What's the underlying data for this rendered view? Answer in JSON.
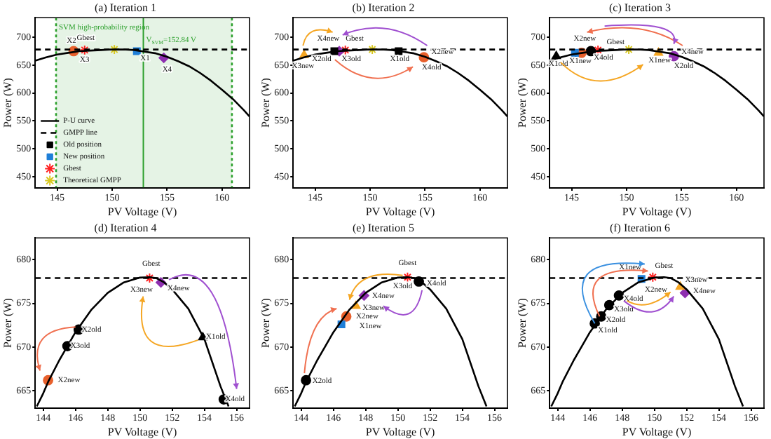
{
  "chart_data": [
    {
      "type": "line",
      "title": "(a) Iteration 1",
      "xlabel": "PV Voltage (V)",
      "ylabel": "Power (W)",
      "xlim": [
        143,
        162.5
      ],
      "xticks": [
        145,
        150,
        155,
        160
      ],
      "ylim": [
        430,
        735
      ],
      "yticks": [
        450,
        500,
        550,
        600,
        650,
        700
      ],
      "legend": "bottom left",
      "bands": [
        {
          "axis": "x",
          "from": 144.9,
          "to": 160.9,
          "label": "SVM high-probability region",
          "color": "#2ca02c"
        }
      ],
      "ref_lines": [
        {
          "axis": "x",
          "value": 152.84,
          "label": "V$_{SVM}$=152.84 V",
          "color": "#2ca02c"
        },
        {
          "axis": "x",
          "value": 144.9,
          "color": "#2ca02c",
          "line_style": "dotted"
        },
        {
          "axis": "x",
          "value": 160.9,
          "color": "#2ca02c",
          "line_style": "dotted"
        }
      ],
      "series": [
        {
          "name": "P-U curve",
          "type": "line",
          "color": "#000000",
          "marker": "none",
          "line_style": "solid",
          "x": [
            143,
            144,
            145,
            146,
            147,
            148,
            149,
            150,
            150.6,
            151,
            152,
            153,
            154,
            155,
            156,
            157,
            158,
            159,
            160,
            161,
            162,
            162.5
          ],
          "values": [
            658,
            664,
            669,
            672,
            675,
            676,
            677,
            678,
            678,
            678,
            677,
            674,
            671,
            665,
            657,
            648,
            636,
            622,
            606,
            589,
            569,
            558
          ]
        },
        {
          "name": "GMPP line",
          "type": "line",
          "color": "#000000",
          "marker": "none",
          "line_style": "dashed",
          "x": [
            143,
            162.5
          ],
          "values": [
            678,
            678
          ]
        },
        {
          "name": "Old position",
          "type": "scatter",
          "color": "#000000",
          "marker": "square"
        },
        {
          "name": "New position",
          "type": "scatter",
          "color": "#1f7fd8",
          "marker": "square",
          "x": [
            152.25
          ],
          "values": [
            675
          ]
        },
        {
          "name": "Gbest",
          "type": "scatter",
          "color": "#ff2020",
          "marker": "cross",
          "x": [
            147.5
          ],
          "values": [
            677
          ]
        },
        {
          "name": "Theoretical GMPP",
          "type": "scatter",
          "color": "#d8c820",
          "marker": "cross",
          "x": [
            150.2
          ],
          "values": [
            678
          ]
        },
        {
          "type": "scatter",
          "color": "#e8602c",
          "marker": "circle",
          "x": [
            146.5
          ],
          "values": [
            675
          ]
        },
        {
          "type": "scatter",
          "color": "#8e2fb0",
          "marker": "diamond",
          "x": [
            154.7
          ],
          "values": [
            663
          ]
        }
      ],
      "annotations": [
        "X2",
        "Gbest",
        "X3",
        "X1",
        "X4"
      ]
    },
    {
      "type": "line",
      "title": "(b) Iteration 2",
      "xlabel": "PV Voltage (V)",
      "ylabel": "Power (W)",
      "xlim": [
        143,
        162.5
      ],
      "xticks": [
        145,
        150,
        155,
        160
      ],
      "ylim": [
        430,
        735
      ],
      "yticks": [
        450,
        500,
        550,
        600,
        650,
        700
      ],
      "series": [
        {
          "type": "line",
          "color": "#000000",
          "marker": "none",
          "line_style": "solid",
          "x": [
            143,
            144,
            145,
            146,
            147,
            148,
            149,
            150,
            150.6,
            151,
            152,
            153,
            154,
            155,
            156,
            157,
            158,
            159,
            160,
            161,
            162,
            162.5
          ],
          "values": [
            658,
            664,
            669,
            672,
            675,
            676,
            677,
            678,
            678,
            678,
            677,
            674,
            671,
            665,
            657,
            648,
            636,
            622,
            606,
            589,
            569,
            558
          ]
        },
        {
          "type": "line",
          "color": "#000000",
          "marker": "none",
          "line_style": "dashed",
          "x": [
            143,
            162.5
          ],
          "values": [
            678,
            678
          ]
        },
        {
          "type": "scatter",
          "color": "#000000",
          "marker": "square",
          "x": [
            146.75,
            152.6
          ],
          "values": [
            675,
            675
          ]
        },
        {
          "type": "scatter",
          "color": "#8e2fb0",
          "marker": "diamond",
          "x": [
            147.2
          ],
          "values": [
            675
          ]
        },
        {
          "type": "scatter",
          "color": "#ff2020",
          "marker": "cross",
          "x": [
            147.75
          ],
          "values": [
            677
          ]
        },
        {
          "type": "scatter",
          "color": "#d8c820",
          "marker": "cross",
          "x": [
            150.2
          ],
          "values": [
            678
          ]
        },
        {
          "type": "scatter",
          "color": "#f5a623",
          "marker": "triangle",
          "x": [
            144
          ],
          "values": [
            668
          ]
        },
        {
          "type": "scatter",
          "color": "#e8602c",
          "marker": "circle",
          "x": [
            154.9
          ],
          "values": [
            664
          ]
        }
      ],
      "annotations": [
        "X3new",
        {
          "text": "X4new",
          "x": 147.2,
          "y": 675
        },
        {
          "text": "Gbest",
          "x": 147.75,
          "y": 677
        },
        "X2old",
        "X3old",
        {
          "text": "X1old",
          "x": 152.6,
          "y": 675
        },
        "X2new",
        {
          "text": "X4old",
          "x": 154.9,
          "y": 664
        }
      ]
    },
    {
      "type": "line",
      "title": "(c) Iteration 3",
      "xlabel": "PV Voltage (V)",
      "ylabel": "Power (W)",
      "xlim": [
        143,
        162.5
      ],
      "xticks": [
        145,
        150,
        155,
        160
      ],
      "ylim": [
        430,
        735
      ],
      "yticks": [
        450,
        500,
        550,
        600,
        650,
        700
      ],
      "series": [
        {
          "type": "line",
          "color": "#000000",
          "marker": "none",
          "line_style": "solid",
          "x": [
            143,
            144,
            145,
            146,
            147,
            148,
            149,
            150,
            150.6,
            151,
            152,
            153,
            154,
            155,
            156,
            157,
            158,
            159,
            160,
            161,
            162,
            162.5
          ],
          "values": [
            658,
            664,
            669,
            672,
            675,
            676,
            677,
            678,
            678,
            678,
            677,
            674,
            671,
            665,
            657,
            648,
            636,
            622,
            606,
            589,
            569,
            558
          ]
        },
        {
          "type": "line",
          "color": "#000000",
          "marker": "none",
          "line_style": "dashed",
          "x": [
            143,
            162.5
          ],
          "values": [
            678,
            678
          ]
        },
        {
          "type": "scatter",
          "color": "#000000",
          "marker": "triangle",
          "x": [
            143.6
          ],
          "values": [
            666
          ]
        },
        {
          "type": "scatter",
          "color": "#1f7fd8",
          "marker": "square",
          "x": [
            145.3
          ],
          "values": [
            672
          ]
        },
        {
          "type": "scatter",
          "color": "#e8602c",
          "marker": "circle",
          "x": [
            145.9
          ],
          "values": [
            672
          ]
        },
        {
          "type": "scatter",
          "color": "#000000",
          "marker": "circle",
          "x": [
            146.75
          ],
          "values": [
            675
          ]
        },
        {
          "type": "scatter",
          "color": "#ff2020",
          "marker": "cross",
          "x": [
            147.4
          ],
          "values": [
            677
          ]
        },
        {
          "type": "scatter",
          "color": "#d8c820",
          "marker": "cross",
          "x": [
            150.2
          ],
          "values": [
            678
          ]
        },
        {
          "type": "scatter",
          "color": "#f5a623",
          "marker": "triangle",
          "x": [
            152.9
          ],
          "values": [
            672
          ]
        },
        {
          "type": "scatter",
          "color": "#8e2fb0",
          "marker": "circle",
          "x": [
            154.3
          ],
          "values": [
            666
          ]
        }
      ],
      "annotations": [
        "X2new",
        "Gbest",
        "X1old",
        "X1new",
        "X4old",
        {
          "text": "X1new",
          "x": 152.9,
          "y": 672
        },
        "X4new",
        "X2old"
      ]
    },
    {
      "type": "line",
      "title": "(d) Iteration 4",
      "xlabel": "PV Voltage (V)",
      "ylabel": "Power (W)",
      "xlim": [
        143.5,
        156.8
      ],
      "xticks": [
        144,
        146,
        148,
        150,
        152,
        154,
        156
      ],
      "ylim": [
        663,
        682.5
      ],
      "yticks": [
        665,
        670,
        675,
        680
      ],
      "series": [
        {
          "type": "line",
          "color": "#000000",
          "marker": "none",
          "line_style": "solid",
          "x": [
            143.6,
            144,
            144.3,
            145,
            145.5,
            146,
            146.5,
            147,
            148,
            149,
            150,
            150.6,
            151,
            151.5,
            152,
            153,
            154,
            155,
            155.5
          ],
          "values": [
            663.2,
            664.7,
            666,
            668.5,
            670.1,
            671.7,
            673,
            674.3,
            676.2,
            677.4,
            677.95,
            678,
            677.9,
            677.4,
            676.6,
            674.4,
            670.9,
            665.5,
            663.2
          ]
        },
        {
          "type": "line",
          "color": "#000000",
          "marker": "none",
          "line_style": "dashed",
          "x": [
            143.5,
            156.8
          ],
          "values": [
            677.9,
            677.9
          ]
        },
        {
          "type": "scatter",
          "color": "#e8602c",
          "marker": "circle",
          "x": [
            144.3
          ],
          "values": [
            666.2
          ]
        },
        {
          "type": "scatter",
          "color": "#000000",
          "marker": "circle",
          "x": [
            145.5,
            146.2,
            155.2
          ],
          "values": [
            670.1,
            672,
            664
          ]
        },
        {
          "type": "scatter",
          "color": "#ff2020",
          "marker": "cross",
          "x": [
            150.6
          ],
          "values": [
            677.9
          ]
        },
        {
          "type": "scatter",
          "color": "#8e2fb0",
          "marker": "diamond",
          "x": [
            151.3
          ],
          "values": [
            677.4
          ]
        },
        {
          "type": "scatter",
          "color": "#000000",
          "marker": "triangle",
          "x": [
            153.9
          ],
          "values": [
            671.1
          ]
        }
      ],
      "annotations": [
        "Gbest",
        {
          "text": "X3new",
          "x": 150.6,
          "y": 677.9
        },
        "X4new",
        "X2old",
        "X3old",
        "X2new",
        "X1old",
        "X4old"
      ]
    },
    {
      "type": "line",
      "title": "(e) Iteration 5",
      "xlabel": "PV Voltage (V)",
      "ylabel": "Power (W)",
      "xlim": [
        143.5,
        156.8
      ],
      "xticks": [
        144,
        146,
        148,
        150,
        152,
        154,
        156
      ],
      "ylim": [
        663,
        682.5
      ],
      "yticks": [
        665,
        670,
        675,
        680
      ],
      "series": [
        {
          "type": "line",
          "color": "#000000",
          "marker": "none",
          "line_style": "solid",
          "x": [
            143.6,
            144,
            144.3,
            145,
            145.5,
            146,
            146.5,
            147,
            148,
            149,
            150,
            150.6,
            151,
            151.5,
            152,
            153,
            154,
            155,
            155.5
          ],
          "values": [
            663.2,
            664.7,
            666,
            668.5,
            670.1,
            671.7,
            673,
            674.3,
            676.2,
            677.4,
            677.95,
            678,
            677.9,
            677.4,
            676.6,
            674.4,
            670.9,
            665.5,
            663.2
          ]
        },
        {
          "type": "line",
          "color": "#000000",
          "marker": "none",
          "line_style": "dashed",
          "x": [
            143.5,
            156.8
          ],
          "values": [
            677.9,
            677.9
          ]
        },
        {
          "type": "scatter",
          "color": "#000000",
          "marker": "circle",
          "x": [
            144.3,
            151.3
          ],
          "values": [
            666.2,
            677.5
          ]
        },
        {
          "type": "scatter",
          "color": "#1f7fd8",
          "marker": "square",
          "x": [
            146.5
          ],
          "values": [
            672.6
          ]
        },
        {
          "type": "scatter",
          "color": "#e8602c",
          "marker": "circle",
          "x": [
            146.8
          ],
          "values": [
            673.5
          ]
        },
        {
          "type": "scatter",
          "color": "#f5a623",
          "marker": "triangle",
          "x": [
            147.4
          ],
          "values": [
            674.7
          ]
        },
        {
          "type": "scatter",
          "color": "#8e2fb0",
          "marker": "diamond",
          "x": [
            147.9
          ],
          "values": [
            675.9
          ]
        },
        {
          "type": "scatter",
          "color": "#ff2020",
          "marker": "cross",
          "x": [
            150.6
          ],
          "values": [
            678
          ]
        }
      ],
      "annotations": [
        "X2old",
        "X1new",
        "X2new",
        "X3new",
        "X4new",
        "Gbest",
        "X3old",
        "X4old"
      ]
    },
    {
      "type": "line",
      "title": "(f) Iteration 6",
      "xlabel": "PV Voltage (V)",
      "ylabel": "Power (W)",
      "xlim": [
        143.5,
        156.8
      ],
      "xticks": [
        144,
        146,
        148,
        150,
        152,
        154,
        156
      ],
      "ylim": [
        663,
        682.5
      ],
      "yticks": [
        665,
        670,
        675,
        680
      ],
      "series": [
        {
          "type": "line",
          "color": "#000000",
          "marker": "none",
          "line_style": "solid",
          "x": [
            143.6,
            144,
            144.3,
            145,
            145.5,
            146,
            146.5,
            147,
            148,
            149,
            150,
            150.6,
            151,
            151.5,
            152,
            153,
            154,
            155,
            155.5
          ],
          "values": [
            663.2,
            664.7,
            666,
            668.5,
            670.1,
            671.7,
            673,
            674.3,
            676.2,
            677.4,
            677.95,
            678,
            677.9,
            677.4,
            676.6,
            674.4,
            670.9,
            665.5,
            663.2
          ]
        },
        {
          "type": "line",
          "color": "#000000",
          "marker": "none",
          "line_style": "dashed",
          "x": [
            143.5,
            156.8
          ],
          "values": [
            677.9,
            677.9
          ]
        },
        {
          "type": "scatter",
          "color": "#000000",
          "marker": "circle",
          "x": [
            146.3,
            146.7,
            147.2,
            147.8
          ],
          "values": [
            672.7,
            673.5,
            674.8,
            675.9
          ]
        },
        {
          "type": "scatter",
          "color": "#1f7fd8",
          "marker": "square",
          "x": [
            149.2
          ],
          "values": [
            677.8
          ]
        },
        {
          "type": "scatter",
          "color": "#ff2020",
          "marker": "cross",
          "x": [
            149.9
          ],
          "values": [
            678
          ]
        },
        {
          "type": "scatter",
          "color": "#f5a623",
          "marker": "triangle",
          "x": [
            151.6
          ],
          "values": [
            676.9
          ]
        },
        {
          "type": "scatter",
          "color": "#8e2fb0",
          "marker": "diamond",
          "x": [
            151.9
          ],
          "values": [
            676.2
          ]
        }
      ],
      "annotations": [
        {
          "text": "X1new",
          "x": 149.2,
          "y": 677.8
        },
        "Gbest",
        "X2new",
        "X3new",
        "X4new",
        "X1old",
        "X2old",
        "X3old",
        "X4old"
      ]
    }
  ]
}
